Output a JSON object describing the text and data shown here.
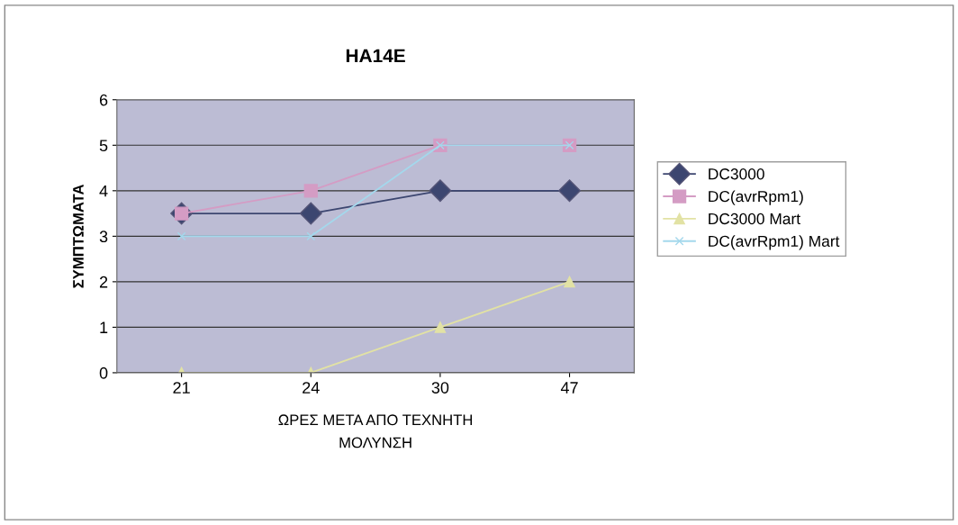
{
  "chart_data": {
    "type": "line",
    "title": "HA14E",
    "xlabel": "ΩΡΕΣ ΜΕΤΑ ΑΠΟ ΤΕΧΝΗΤΗ\nΜΟΛΥΝΣΗ",
    "ylabel": "ΣΥΜΠΤΩΜΑΤΑ",
    "categories": [
      "21",
      "24",
      "30",
      "47"
    ],
    "ylim": [
      0,
      6
    ],
    "yticks": [
      0,
      1,
      2,
      3,
      4,
      5,
      6
    ],
    "grid": "y",
    "legend": "right",
    "series": [
      {
        "name": "DC3000",
        "color": "#3c4670",
        "marker": "diamond",
        "values": [
          3.5,
          3.5,
          4,
          4
        ]
      },
      {
        "name": "DC(avrRpm1)",
        "color": "#d49cc4",
        "marker": "square",
        "values": [
          3.5,
          4,
          5,
          5
        ]
      },
      {
        "name": "DC3000 Mart",
        "color": "#e2e2a4",
        "marker": "triangle",
        "values": [
          0,
          0,
          1,
          2
        ]
      },
      {
        "name": "DC(avrRpm1) Mart",
        "color": "#a4d8ec",
        "marker": "cross",
        "values": [
          3,
          3,
          5,
          5
        ]
      }
    ]
  }
}
